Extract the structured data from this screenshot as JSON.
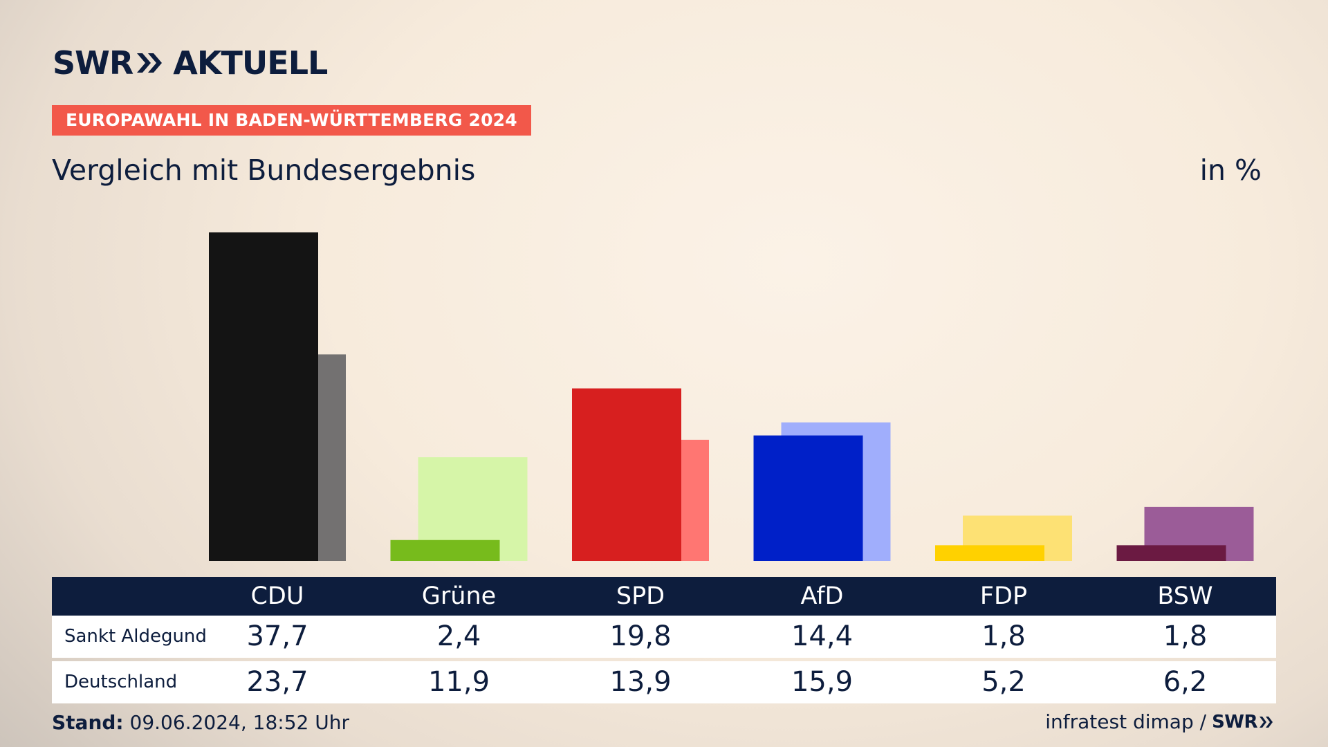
{
  "brand": {
    "swr": "SWR",
    "aktuell": "AKTUELL",
    "brand_color": "#0d1d3d",
    "tag_color": "#f2584a"
  },
  "tag": "EUROPAWAHL IN BADEN-WÜRTTEMBERG 2024",
  "subtitle": "Vergleich mit Bundesergebnis",
  "unit": "in %",
  "footer": {
    "stand_label": "Stand:",
    "stand_value": "09.06.2024, 18:52 Uhr",
    "source": "infratest dimap /",
    "source_logo": "SWR"
  },
  "chart_data": {
    "type": "bar",
    "categories": [
      "CDU",
      "Grüne",
      "SPD",
      "AfD",
      "FDP",
      "BSW"
    ],
    "series": [
      {
        "name": "Sankt Aldegund",
        "values": [
          37.7,
          2.4,
          19.8,
          14.4,
          1.8,
          1.8
        ],
        "colors": [
          "#141414",
          "#77bb1c",
          "#d71f1f",
          "#0020c8",
          "#ffd100",
          "#6b1a42"
        ]
      },
      {
        "name": "Deutschland",
        "values": [
          23.7,
          11.9,
          13.9,
          15.9,
          5.2,
          6.2
        ],
        "colors": [
          "#737171",
          "#d6f5a8",
          "#ff7672",
          "#a0aefc",
          "#fde174",
          "#9b5c98"
        ]
      }
    ],
    "ylim": [
      0,
      37.7
    ],
    "grid": false,
    "legend": "none"
  },
  "table": {
    "rows": [
      {
        "label": "Sankt Aldegund",
        "values": [
          "37,7",
          "2,4",
          "19,8",
          "14,4",
          "1,8",
          "1,8"
        ]
      },
      {
        "label": "Deutschland",
        "values": [
          "23,7",
          "11,9",
          "13,9",
          "15,9",
          "5,2",
          "6,2"
        ]
      }
    ]
  }
}
